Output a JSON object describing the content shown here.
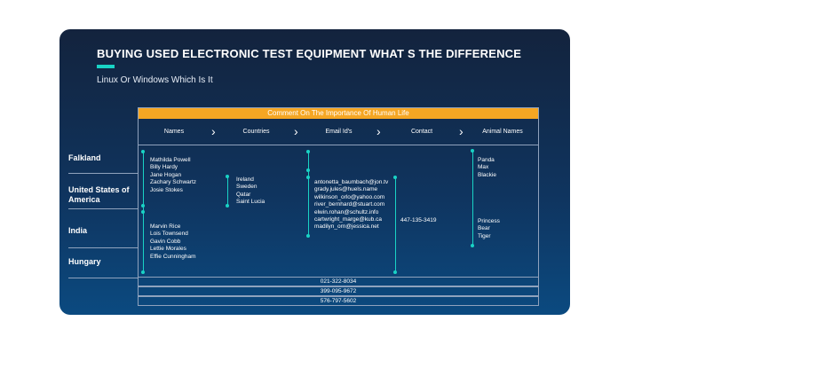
{
  "title": "BUYING USED ELECTRONIC TEST EQUIPMENT WHAT S THE DIFFERENCE",
  "subtitle": "Linux Or Windows Which Is It",
  "table": {
    "banner": "Comment On The Importance Of Human Life",
    "headers": [
      "Names",
      "Countries",
      "Email Id's",
      "Contact",
      "Animal Names"
    ],
    "row_labels": [
      "Falkland",
      "United States of America",
      "India",
      "Hungary"
    ],
    "names_group1": [
      "Mathilda Powell",
      "Billy Hardy",
      "Jane Hogan",
      "Zachary Schwartz",
      "Josie Stokes"
    ],
    "names_group2": [
      "Marvin Rice",
      "Lois Townsend",
      "Gavin Cobb",
      "Lettie Morales",
      "Effie Cunningham"
    ],
    "countries": [
      "Ireland",
      "Sweden",
      "Qatar",
      "Saint Lucia"
    ],
    "emails": [
      "antonetta_baumbach@jon.tv",
      "grady.jules@huels.name",
      "wilkinson_orlo@yahoo.com",
      "river_bernhard@stuart.com",
      "elwin.rohan@schultz.info",
      "cartwright_marge@kub.ca",
      "madilyn_orn@jessica.net"
    ],
    "contact": "447-135-3419",
    "animals_group1": [
      "Panda",
      "Max",
      "Blackie"
    ],
    "animals_group2": [
      "Princess",
      "Bear",
      "Tiger"
    ],
    "footer_phones": [
      "021-322-8034",
      "399-095-9672",
      "576-797-5602"
    ]
  }
}
